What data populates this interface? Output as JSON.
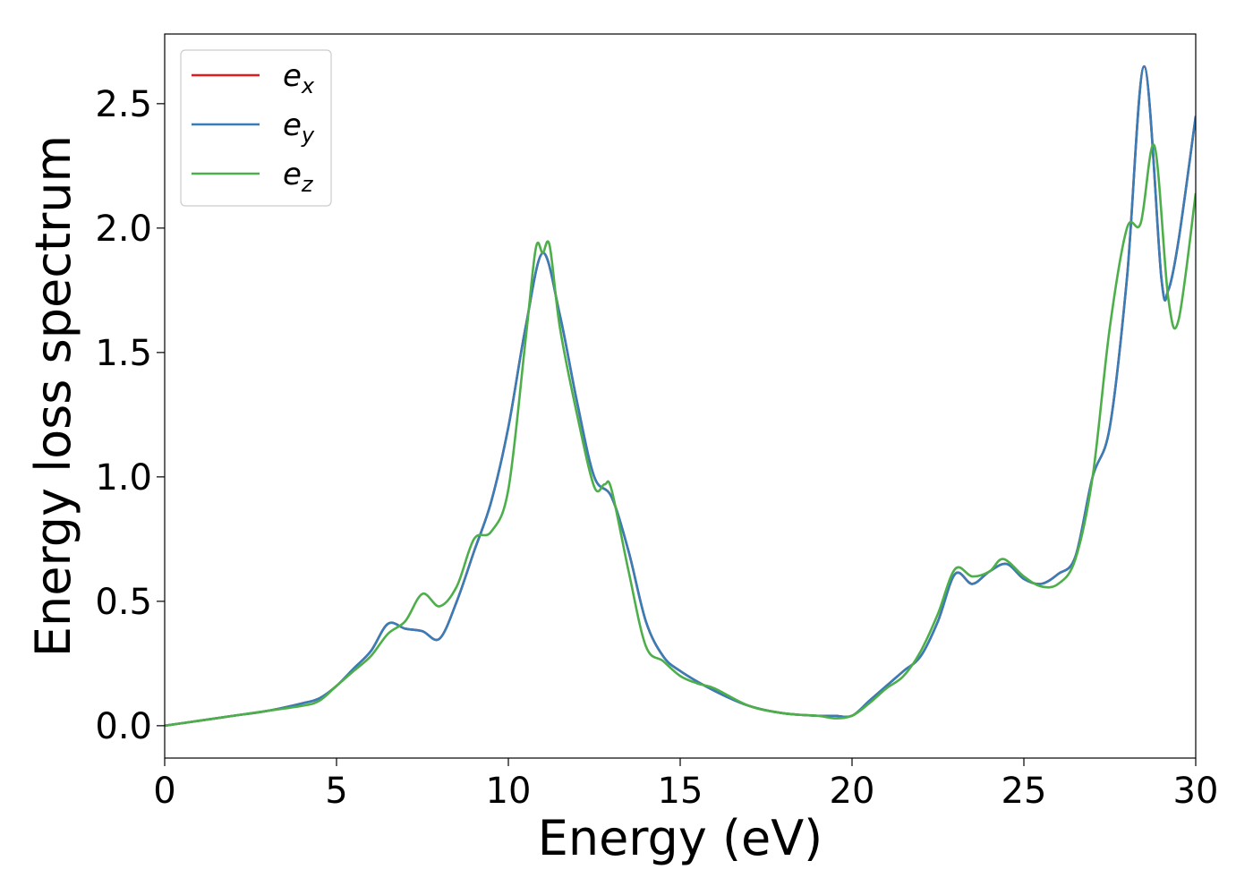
{
  "chart_data": {
    "type": "line",
    "xlabel": "Energy (eV)",
    "ylabel": "Energy loss spectrum",
    "xlim": [
      0,
      30
    ],
    "ylim": [
      -0.13,
      2.78
    ],
    "xticks": [
      0,
      5,
      10,
      15,
      20,
      25,
      30
    ],
    "xtick_labels": [
      "0",
      "5",
      "10",
      "15",
      "20",
      "25",
      "30"
    ],
    "yticks": [
      0.0,
      0.5,
      1.0,
      1.5,
      2.0,
      2.5
    ],
    "ytick_labels": [
      "0.0",
      "0.5",
      "1.0",
      "1.5",
      "2.0",
      "2.5"
    ],
    "grid": false,
    "legend_position": "top-left",
    "series": [
      {
        "name": "e_x",
        "legend_base": "e",
        "legend_sub": "x",
        "color": "#e41a1c",
        "x": [
          0,
          1,
          2,
          3,
          4,
          4.5,
          5,
          5.5,
          6,
          6.5,
          7,
          7.5,
          8,
          8.5,
          9,
          9.5,
          10,
          10.5,
          11,
          11.5,
          12,
          12.5,
          13,
          13.5,
          14,
          14.5,
          15,
          16,
          17,
          18,
          19,
          19.5,
          20,
          20.5,
          21,
          21.5,
          22,
          22.5,
          23,
          23.5,
          24,
          24.5,
          25,
          25.5,
          26,
          26.5,
          27,
          27.5,
          28,
          28.5,
          29,
          29.2,
          29.5,
          30
        ],
        "y": [
          0.0,
          0.02,
          0.04,
          0.06,
          0.09,
          0.11,
          0.16,
          0.23,
          0.3,
          0.41,
          0.39,
          0.38,
          0.35,
          0.5,
          0.7,
          0.9,
          1.2,
          1.6,
          1.9,
          1.65,
          1.3,
          1.0,
          0.92,
          0.7,
          0.42,
          0.28,
          0.22,
          0.14,
          0.08,
          0.05,
          0.04,
          0.04,
          0.04,
          0.1,
          0.16,
          0.22,
          0.28,
          0.42,
          0.61,
          0.57,
          0.62,
          0.65,
          0.59,
          0.57,
          0.61,
          0.68,
          1.0,
          1.2,
          1.8,
          2.65,
          1.8,
          1.75,
          1.95,
          2.45
        ]
      },
      {
        "name": "e_y",
        "legend_base": "e",
        "legend_sub": "y",
        "color": "#377eb8",
        "x": [
          0,
          1,
          2,
          3,
          4,
          4.5,
          5,
          5.5,
          6,
          6.5,
          7,
          7.5,
          8,
          8.5,
          9,
          9.5,
          10,
          10.5,
          11,
          11.5,
          12,
          12.5,
          13,
          13.5,
          14,
          14.5,
          15,
          16,
          17,
          18,
          19,
          19.5,
          20,
          20.5,
          21,
          21.5,
          22,
          22.5,
          23,
          23.5,
          24,
          24.5,
          25,
          25.5,
          26,
          26.5,
          27,
          27.5,
          28,
          28.5,
          29,
          29.2,
          29.5,
          30
        ],
        "y": [
          0.0,
          0.02,
          0.04,
          0.06,
          0.09,
          0.11,
          0.16,
          0.23,
          0.3,
          0.41,
          0.39,
          0.38,
          0.35,
          0.5,
          0.7,
          0.9,
          1.2,
          1.6,
          1.9,
          1.65,
          1.3,
          1.0,
          0.92,
          0.7,
          0.42,
          0.28,
          0.22,
          0.14,
          0.08,
          0.05,
          0.04,
          0.04,
          0.04,
          0.1,
          0.16,
          0.22,
          0.28,
          0.42,
          0.61,
          0.57,
          0.62,
          0.65,
          0.59,
          0.57,
          0.61,
          0.68,
          1.0,
          1.2,
          1.8,
          2.65,
          1.8,
          1.75,
          1.95,
          2.45
        ]
      },
      {
        "name": "e_z",
        "legend_base": "e",
        "legend_sub": "z",
        "color": "#4daf4a",
        "x": [
          0,
          1,
          2,
          3,
          4,
          4.5,
          5,
          5.5,
          6,
          6.5,
          7,
          7.5,
          8,
          8.5,
          9,
          9.5,
          10,
          10.5,
          10.8,
          11.0,
          11.2,
          11.5,
          12,
          12.5,
          12.8,
          13,
          13.5,
          14,
          14.5,
          15,
          15.5,
          16,
          17,
          18,
          19,
          19.5,
          20,
          20.5,
          21,
          21.5,
          22,
          22.5,
          23,
          23.5,
          24,
          24.4,
          25,
          25.5,
          26,
          26.5,
          27,
          27.5,
          28,
          28.4,
          28.8,
          29.2,
          29.5,
          30
        ],
        "y": [
          0.0,
          0.02,
          0.04,
          0.06,
          0.08,
          0.1,
          0.16,
          0.22,
          0.28,
          0.37,
          0.42,
          0.53,
          0.48,
          0.56,
          0.75,
          0.78,
          0.95,
          1.55,
          1.92,
          1.9,
          1.93,
          1.6,
          1.25,
          0.96,
          0.97,
          0.95,
          0.62,
          0.32,
          0.26,
          0.2,
          0.17,
          0.15,
          0.08,
          0.05,
          0.04,
          0.03,
          0.04,
          0.09,
          0.15,
          0.2,
          0.3,
          0.45,
          0.63,
          0.6,
          0.62,
          0.67,
          0.6,
          0.56,
          0.57,
          0.67,
          1.0,
          1.6,
          2.0,
          2.02,
          2.33,
          1.72,
          1.63,
          2.14
        ]
      }
    ]
  }
}
